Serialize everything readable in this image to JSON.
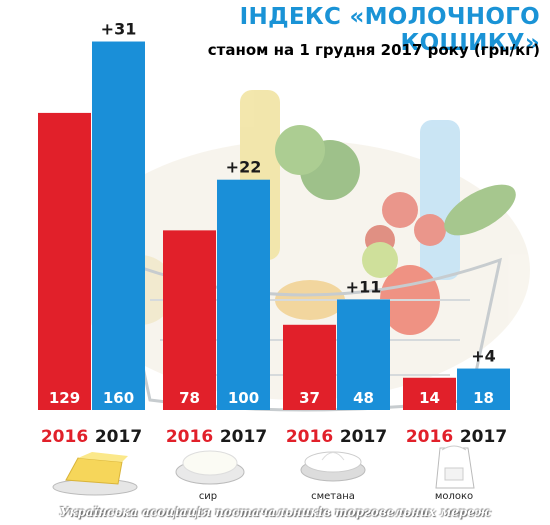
{
  "title": "ІНДЕКС «МОЛОЧНОГО КОШИКУ»",
  "subtitle": "станом на 1 грудня 2017 року (грн/кг)",
  "footer": "Українська асоціація постачальників торговельних мереж",
  "colors": {
    "title": "#1a93d6",
    "bar2016": "#e1202a",
    "bar2017": "#1a8fd8",
    "year2016": "#e1202a",
    "year2017": "#1a1a1a",
    "delta": "#1a1a1a"
  },
  "chart_data": {
    "type": "bar",
    "title": "ІНДЕКС «МОЛОЧНОГО КОШИКУ»",
    "subtitle": "станом на 1 грудня 2017 року (грн/кг)",
    "categories": [
      "",
      "сир",
      "сметана",
      "молоко"
    ],
    "category_icons": [
      "butter-icon",
      "cottage-cheese-icon",
      "sour-cream-icon",
      "milk-icon"
    ],
    "series": [
      {
        "name": "2016",
        "values": [
          129,
          78,
          37,
          14
        ]
      },
      {
        "name": "2017",
        "values": [
          160,
          100,
          48,
          18
        ]
      }
    ],
    "deltas": [
      "+31",
      "+22",
      "+11",
      "+4"
    ],
    "ylim": [
      0,
      165
    ],
    "grid": false,
    "xlabel": "",
    "ylabel": ""
  }
}
